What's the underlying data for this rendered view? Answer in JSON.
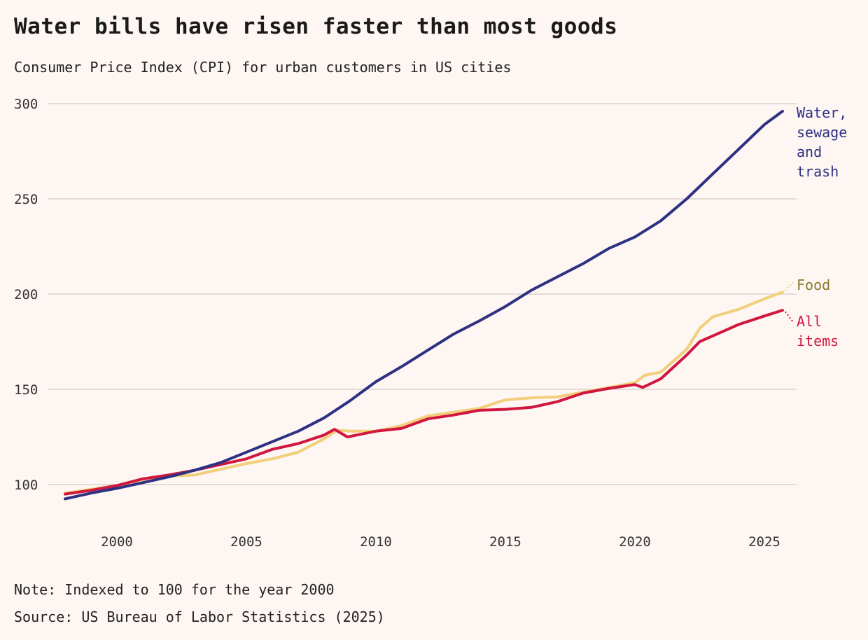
{
  "title": "Water bills have risen faster than most goods",
  "subtitle": "Consumer Price Index (CPI) for urban customers in US cities",
  "note": "Note: Indexed to 100 for the year 2000",
  "source": "Source: US Bureau of Labor Statistics (2025)",
  "chart_data": {
    "type": "line",
    "title": "Water bills have risen faster than most goods",
    "subtitle": "Consumer Price Index (CPI) for urban customers in US cities",
    "xlabel": "",
    "ylabel": "",
    "xlim": [
      1998,
      2026.1
    ],
    "ylim": [
      80,
      305
    ],
    "x_ticks": [
      2000,
      2005,
      2010,
      2015,
      2020,
      2025
    ],
    "y_ticks": [
      100,
      150,
      200,
      250,
      300
    ],
    "grid": "horizontal",
    "series": [
      {
        "name": "Water, sewage and trash",
        "label_lines": [
          "Water,",
          "sewage",
          "and",
          "trash"
        ],
        "color": "#2e3182",
        "points": [
          [
            1998,
            92.5
          ],
          [
            1999,
            95.5
          ],
          [
            2000,
            98
          ],
          [
            2001,
            101
          ],
          [
            2002,
            104
          ],
          [
            2003,
            107.5
          ],
          [
            2004,
            111.5
          ],
          [
            2005,
            117
          ],
          [
            2006,
            122.5
          ],
          [
            2007,
            128
          ],
          [
            2008,
            135
          ],
          [
            2009,
            144
          ],
          [
            2010,
            154
          ],
          [
            2011,
            162
          ],
          [
            2012,
            170.5
          ],
          [
            2013,
            179
          ],
          [
            2014,
            186
          ],
          [
            2015,
            193.5
          ],
          [
            2016,
            202
          ],
          [
            2017,
            209
          ],
          [
            2018,
            216
          ],
          [
            2019,
            224
          ],
          [
            2020,
            230
          ],
          [
            2021,
            238.5
          ],
          [
            2022,
            250
          ],
          [
            2023,
            263
          ],
          [
            2024,
            276
          ],
          [
            2025,
            289
          ],
          [
            2025.7,
            296
          ]
        ]
      },
      {
        "name": "Food",
        "label_lines": [
          "Food"
        ],
        "color": "#f2cf7a",
        "label_color": "#8a7a2a",
        "points": [
          [
            1998,
            95.5
          ],
          [
            1999,
            97.5
          ],
          [
            2000,
            99.5
          ],
          [
            2001,
            102.5
          ],
          [
            2002,
            104.5
          ],
          [
            2003,
            105
          ],
          [
            2004,
            108
          ],
          [
            2005,
            111
          ],
          [
            2006,
            113.5
          ],
          [
            2007,
            117
          ],
          [
            2008,
            124
          ],
          [
            2008.5,
            128.5
          ],
          [
            2009,
            128
          ],
          [
            2010,
            128
          ],
          [
            2011,
            131
          ],
          [
            2012,
            136
          ],
          [
            2013,
            138
          ],
          [
            2014,
            140
          ],
          [
            2015,
            144.5
          ],
          [
            2016,
            145.5
          ],
          [
            2017,
            146
          ],
          [
            2018,
            148.5
          ],
          [
            2019,
            151
          ],
          [
            2020,
            153.5
          ],
          [
            2020.4,
            157.5
          ],
          [
            2021,
            159
          ],
          [
            2022,
            171
          ],
          [
            2022.5,
            182
          ],
          [
            2023,
            188
          ],
          [
            2024,
            192
          ],
          [
            2025,
            197.5
          ],
          [
            2025.7,
            201
          ]
        ]
      },
      {
        "name": "All items",
        "label_lines": [
          "All",
          "items"
        ],
        "color": "#d1163f",
        "points": [
          [
            1998,
            95
          ],
          [
            1999,
            97
          ],
          [
            2000,
            99.5
          ],
          [
            2001,
            103
          ],
          [
            2002,
            105
          ],
          [
            2003,
            107.5
          ],
          [
            2004,
            110.5
          ],
          [
            2005,
            113.5
          ],
          [
            2006,
            118.5
          ],
          [
            2007,
            121.5
          ],
          [
            2008,
            126
          ],
          [
            2008.4,
            129
          ],
          [
            2008.9,
            125
          ],
          [
            2010,
            128
          ],
          [
            2011,
            129.5
          ],
          [
            2012,
            134.5
          ],
          [
            2013,
            136.5
          ],
          [
            2014,
            139
          ],
          [
            2015,
            139.5
          ],
          [
            2016,
            140.5
          ],
          [
            2017,
            143.5
          ],
          [
            2018,
            148
          ],
          [
            2019,
            150.5
          ],
          [
            2020,
            152.5
          ],
          [
            2020.3,
            151
          ],
          [
            2021,
            155.5
          ],
          [
            2022,
            168
          ],
          [
            2022.5,
            175
          ],
          [
            2023,
            178
          ],
          [
            2024,
            184
          ],
          [
            2025,
            188.5
          ],
          [
            2025.7,
            191.5
          ]
        ]
      }
    ]
  }
}
